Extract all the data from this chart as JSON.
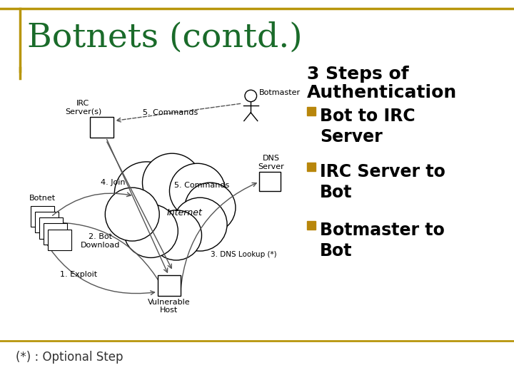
{
  "title": "Botnets (contd.)",
  "title_color": "#1a6b2a",
  "title_fontsize": 34,
  "background_color": "#ffffff",
  "border_color_gold": "#B8960C",
  "border_color_green": "#1a6b2a",
  "heading2_line1": "3 Steps of",
  "heading2_line2": "Authentication",
  "heading2_fontsize": 18,
  "heading2_color": "#000000",
  "bullet_color": "#B8860B",
  "bullet_fontsize": 17,
  "bullets": [
    "Bot to IRC\nServer",
    "IRC Server to\nBot",
    "Botmaster to\nBot"
  ],
  "footer_text": "(*) : Optional Step",
  "footer_fontsize": 12,
  "footer_color": "#333333",
  "diagram_label_fontsize": 8,
  "arrow_color": "#555555",
  "cloud_color": "#000000"
}
